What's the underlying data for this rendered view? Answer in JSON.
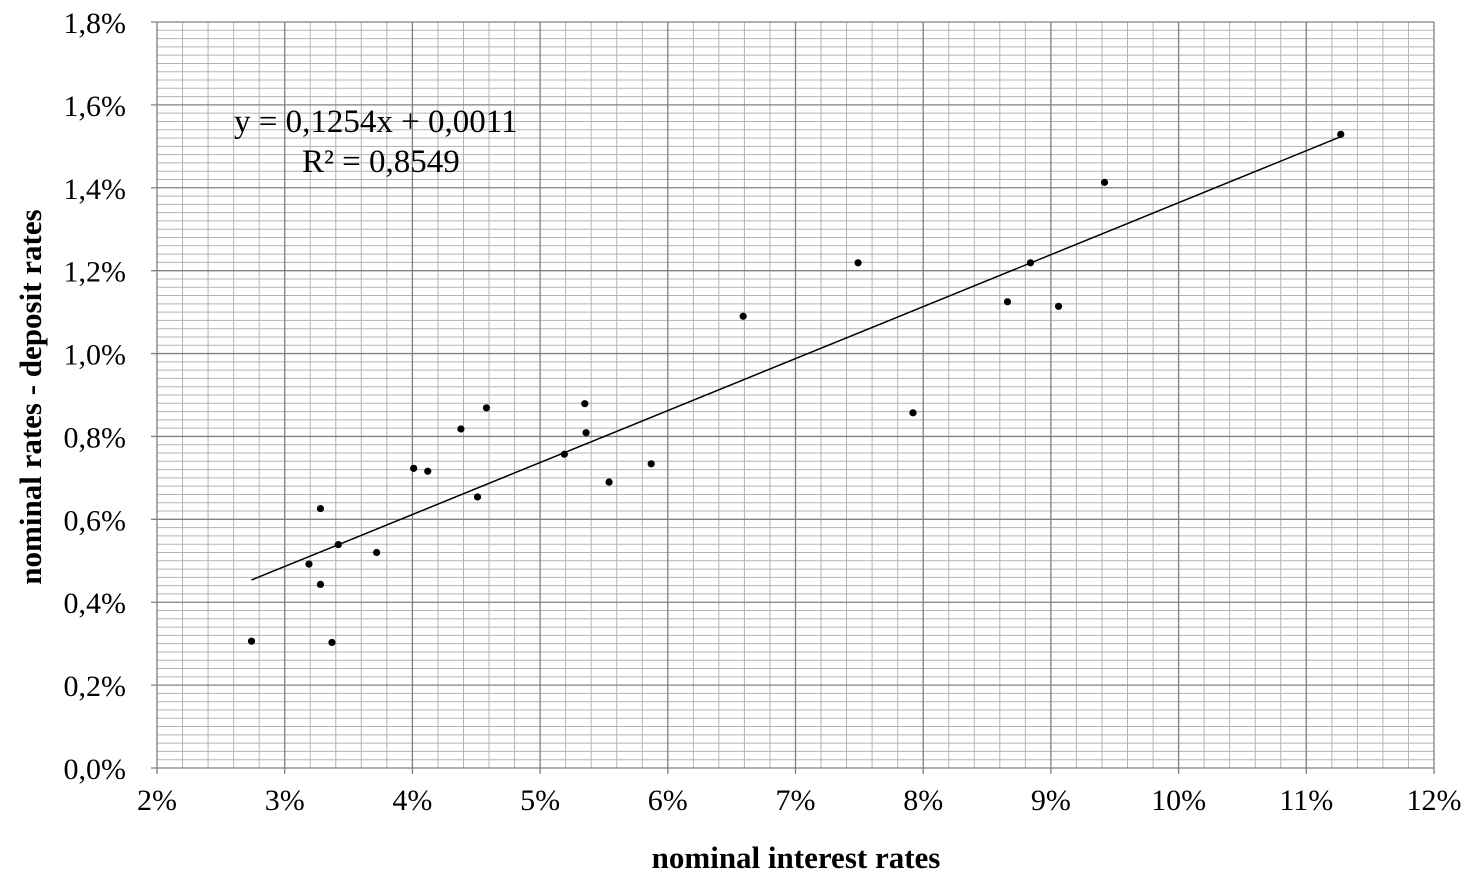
{
  "chart_data": {
    "type": "scatter",
    "xlabel": "nominal interest rates",
    "ylabel": "nominal rates - deposit  rates",
    "xlim": [
      0.02,
      0.12
    ],
    "ylim": [
      0.0,
      0.018
    ],
    "x_ticks": [
      0.02,
      0.03,
      0.04,
      0.05,
      0.06,
      0.07,
      0.08,
      0.09,
      0.1,
      0.11,
      0.12
    ],
    "x_tick_labels": [
      "2%",
      "3%",
      "4%",
      "5%",
      "6%",
      "7%",
      "8%",
      "9%",
      "10%",
      "11%",
      "12%"
    ],
    "y_ticks": [
      0.0,
      0.002,
      0.004,
      0.006,
      0.008,
      0.01,
      0.012,
      0.014,
      0.016,
      0.018
    ],
    "y_tick_labels": [
      "0,0%",
      "0,2%",
      "0,4%",
      "0,6%",
      "0,8%",
      "1,0%",
      "1,2%",
      "1,4%",
      "1,6%",
      "1,8%"
    ],
    "grid": true,
    "minor_grid": true,
    "points": [
      {
        "x": 0.0274,
        "y": 0.00306
      },
      {
        "x": 0.0319,
        "y": 0.00492
      },
      {
        "x": 0.0328,
        "y": 0.00626
      },
      {
        "x": 0.0328,
        "y": 0.00443
      },
      {
        "x": 0.0337,
        "y": 0.00303
      },
      {
        "x": 0.0342,
        "y": 0.00539
      },
      {
        "x": 0.0372,
        "y": 0.0052
      },
      {
        "x": 0.0401,
        "y": 0.00723
      },
      {
        "x": 0.0412,
        "y": 0.00716
      },
      {
        "x": 0.0438,
        "y": 0.00818
      },
      {
        "x": 0.0451,
        "y": 0.00654
      },
      {
        "x": 0.0458,
        "y": 0.00869
      },
      {
        "x": 0.0519,
        "y": 0.00757
      },
      {
        "x": 0.0535,
        "y": 0.00879
      },
      {
        "x": 0.0536,
        "y": 0.00809
      },
      {
        "x": 0.0554,
        "y": 0.0069
      },
      {
        "x": 0.0587,
        "y": 0.00734
      },
      {
        "x": 0.0659,
        "y": 0.0109
      },
      {
        "x": 0.0749,
        "y": 0.01219
      },
      {
        "x": 0.0792,
        "y": 0.00857
      },
      {
        "x": 0.0866,
        "y": 0.01125
      },
      {
        "x": 0.0884,
        "y": 0.01219
      },
      {
        "x": 0.0906,
        "y": 0.01114
      },
      {
        "x": 0.0942,
        "y": 0.01413
      },
      {
        "x": 0.1127,
        "y": 0.01529
      }
    ],
    "trendline": {
      "slope": 0.1254,
      "intercept": 0.0011,
      "x_range": [
        0.0274,
        0.1127
      ],
      "equation": "y = 0,1254x + 0,0011",
      "r_squared": "R² = 0,8549"
    },
    "colors": {
      "major_grid": "#808080",
      "minor_grid": "#b3b3b3",
      "points": "#000000",
      "trendline": "#000000"
    }
  }
}
